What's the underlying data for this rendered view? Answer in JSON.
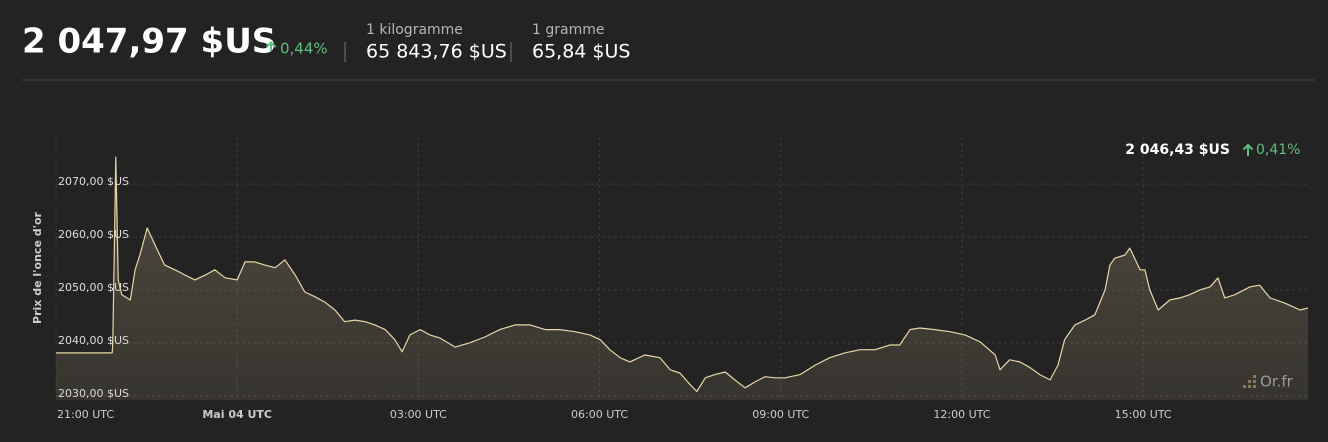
{
  "header": {
    "price": "2 047,97 $US",
    "change": "0,44%",
    "kilo_label": "1 kilogramme",
    "kilo_price": "65 843,76 $US",
    "gram_label": "1 gramme",
    "gram_price": "65,84 $US"
  },
  "chart_data": {
    "type": "area",
    "y_label": "Prix de l'once d'or",
    "last_price": "2 046,43 $US",
    "last_change": "0,41%",
    "watermark": "Or.fr",
    "color": "#e8d6a8",
    "grid": true,
    "xlim": [
      0,
      20.73
    ],
    "ylim": [
      2029.2,
      2078.9
    ],
    "xticks": [
      {
        "value": 0,
        "label": "21:00 UTC"
      },
      {
        "value": 3,
        "label": "Mai 04 UTC",
        "bold": true
      },
      {
        "value": 6,
        "label": "03:00 UTC"
      },
      {
        "value": 9,
        "label": "06:00 UTC"
      },
      {
        "value": 12,
        "label": "09:00 UTC"
      },
      {
        "value": 15,
        "label": "12:00 UTC"
      },
      {
        "value": 18,
        "label": "15:00 UTC"
      }
    ],
    "yticks": [
      {
        "value": 2030,
        "label": "2030,00 $US"
      },
      {
        "value": 2040,
        "label": "2040,00 $US"
      },
      {
        "value": 2050,
        "label": "2050,00 $US"
      },
      {
        "value": 2060,
        "label": "2060,00 $US"
      },
      {
        "value": 2070,
        "label": "2070,00 $US"
      }
    ],
    "x": [
      0.0,
      0.93,
      0.94,
      0.99,
      1.03,
      1.09,
      1.23,
      1.31,
      1.39,
      1.51,
      1.64,
      1.8,
      1.97,
      2.14,
      2.3,
      2.47,
      2.63,
      2.8,
      3.0,
      3.13,
      3.29,
      3.46,
      3.63,
      3.79,
      3.96,
      4.12,
      4.29,
      4.45,
      4.62,
      4.78,
      4.95,
      5.12,
      5.28,
      5.45,
      5.61,
      5.73,
      5.86,
      6.03,
      6.19,
      6.36,
      6.61,
      6.85,
      7.1,
      7.35,
      7.6,
      7.85,
      8.1,
      8.34,
      8.59,
      8.84,
      9.01,
      9.17,
      9.34,
      9.5,
      9.75,
      10.0,
      10.17,
      10.33,
      10.5,
      10.61,
      10.75,
      10.91,
      11.08,
      11.24,
      11.41,
      11.57,
      11.74,
      11.9,
      12.07,
      12.32,
      12.57,
      12.81,
      13.06,
      13.31,
      13.56,
      13.81,
      13.97,
      14.14,
      14.3,
      14.55,
      14.8,
      15.05,
      15.3,
      15.55,
      15.63,
      15.79,
      15.96,
      16.13,
      16.29,
      16.46,
      16.59,
      16.7,
      16.87,
      17.04,
      17.2,
      17.37,
      17.45,
      17.53,
      17.7,
      17.78,
      17.95,
      18.03,
      18.11,
      18.25,
      18.44,
      18.61,
      18.77,
      18.94,
      19.11,
      19.24,
      19.35,
      19.52,
      19.77,
      19.93,
      20.1,
      20.35,
      20.6,
      20.73
    ],
    "values": [
      2038.1,
      2038.1,
      2040.0,
      2075.1,
      2051.9,
      2049.1,
      2048.1,
      2053.8,
      2056.6,
      2061.7,
      2058.5,
      2054.7,
      2053.8,
      2052.8,
      2051.9,
      2052.8,
      2053.8,
      2052.3,
      2051.9,
      2055.3,
      2055.3,
      2054.7,
      2054.2,
      2055.7,
      2052.8,
      2049.6,
      2048.7,
      2047.7,
      2046.2,
      2044.0,
      2044.3,
      2044.0,
      2043.4,
      2042.5,
      2040.6,
      2038.3,
      2041.5,
      2042.5,
      2041.5,
      2040.9,
      2039.2,
      2040.0,
      2041.1,
      2042.5,
      2043.4,
      2043.4,
      2042.5,
      2042.5,
      2042.1,
      2041.5,
      2040.6,
      2038.7,
      2037.2,
      2036.4,
      2037.7,
      2037.2,
      2034.9,
      2034.3,
      2032.1,
      2030.8,
      2033.4,
      2034.0,
      2034.5,
      2033.0,
      2031.5,
      2032.6,
      2033.6,
      2033.4,
      2033.4,
      2034.0,
      2035.8,
      2037.2,
      2038.1,
      2038.7,
      2038.7,
      2039.6,
      2039.6,
      2042.5,
      2042.8,
      2042.5,
      2042.1,
      2041.5,
      2040.2,
      2037.7,
      2034.9,
      2036.8,
      2036.4,
      2035.3,
      2034.0,
      2033.0,
      2035.8,
      2040.6,
      2043.4,
      2044.3,
      2045.3,
      2050.0,
      2054.7,
      2056.0,
      2056.6,
      2057.9,
      2053.8,
      2053.8,
      2050.0,
      2046.2,
      2048.1,
      2048.5,
      2049.1,
      2050.0,
      2050.6,
      2052.3,
      2048.5,
      2049.1,
      2050.6,
      2050.9,
      2048.5,
      2047.5,
      2046.2,
      2046.6
    ]
  }
}
